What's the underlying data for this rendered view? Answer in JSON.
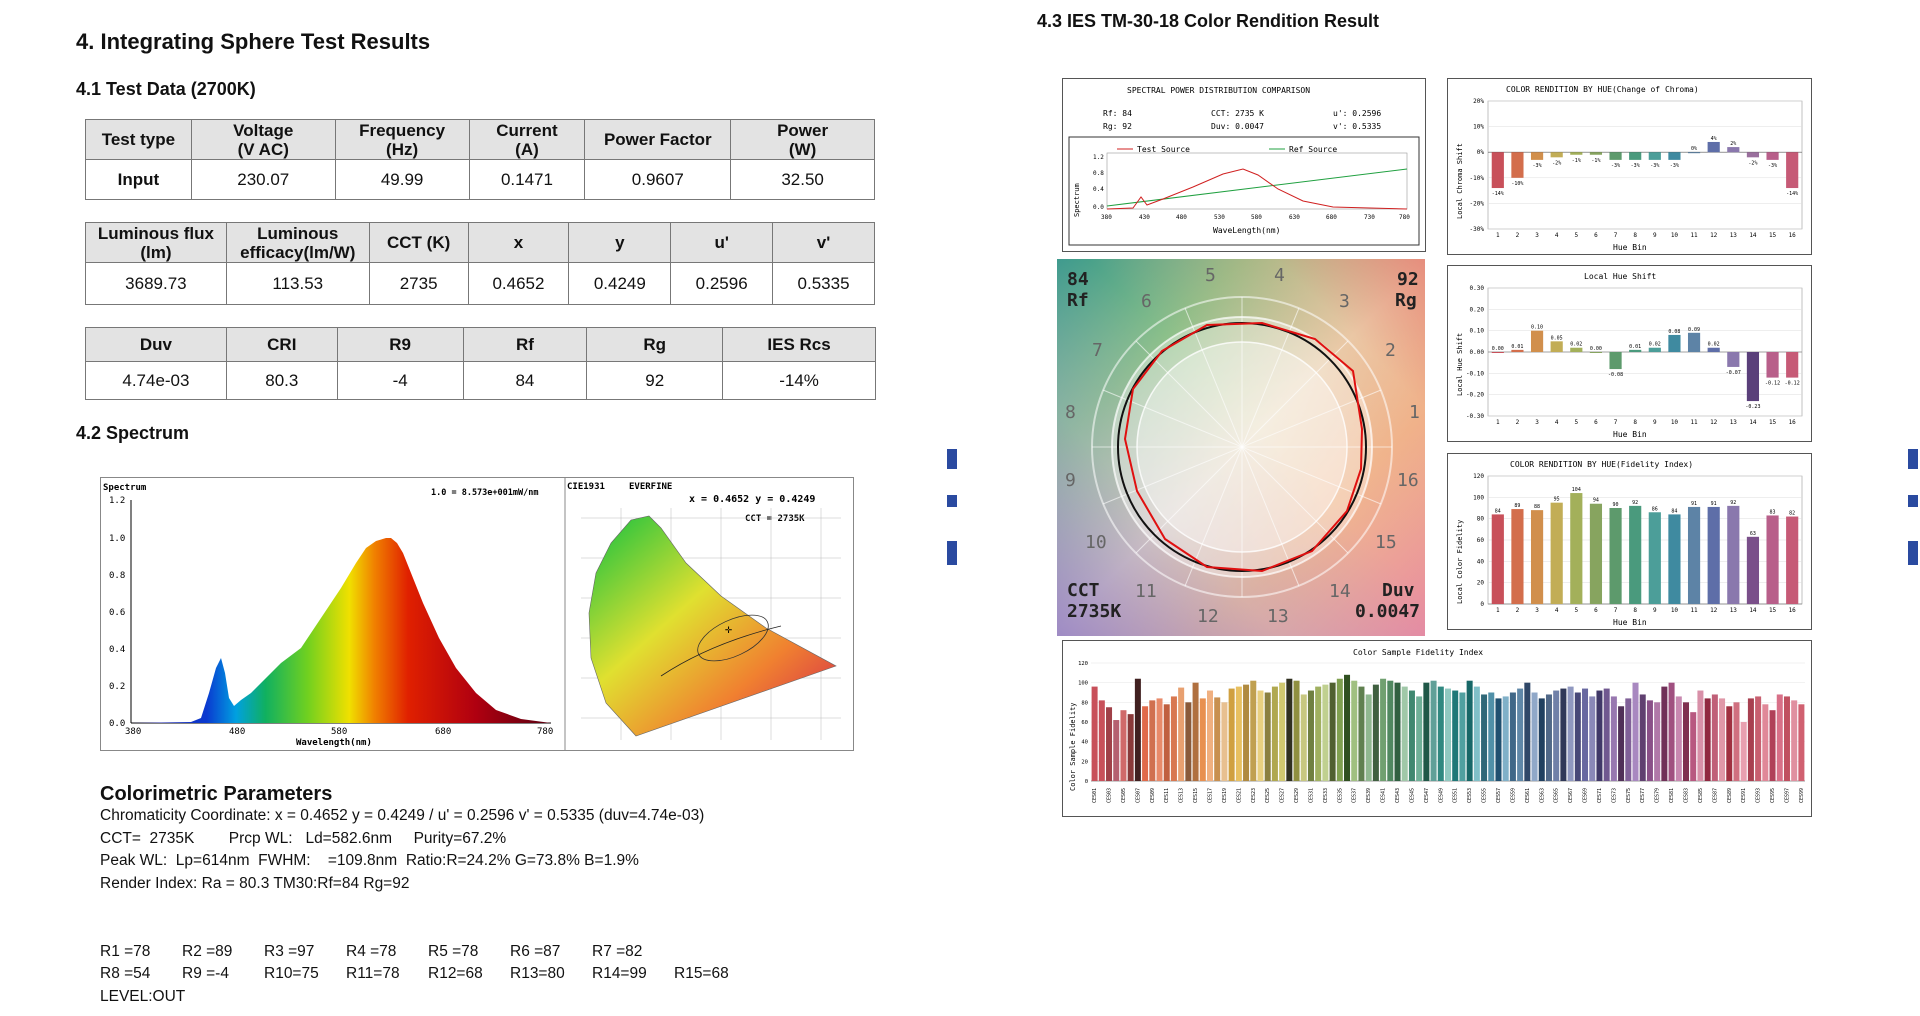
{
  "section_title": "4.  Integrating Sphere Test Results",
  "test_data_title": "4.1 Test Data (2700K)",
  "table1": {
    "headers": [
      [
        "Test type",
        ""
      ],
      [
        "Voltage",
        "(V AC)"
      ],
      [
        "Frequency",
        "(Hz)"
      ],
      [
        "Current",
        "(A)"
      ],
      [
        "Power Factor",
        ""
      ],
      [
        "Power",
        "(W)"
      ]
    ],
    "row": [
      "Input",
      "230.07",
      "49.99",
      "0.1471",
      "0.9607",
      "32.50"
    ]
  },
  "table2": {
    "headers": [
      [
        "Luminous flux",
        "(lm)"
      ],
      [
        "Luminous",
        "efficacy(lm/W)"
      ],
      [
        "CCT (K)",
        ""
      ],
      [
        "x",
        ""
      ],
      [
        "y",
        ""
      ],
      [
        "u'",
        ""
      ],
      [
        "v'",
        ""
      ]
    ],
    "row": [
      "3689.73",
      "113.53",
      "2735",
      "0.4652",
      "0.4249",
      "0.2596",
      "0.5335"
    ]
  },
  "table3": {
    "headers": [
      "Duv",
      "CRI",
      "R9",
      "Rf",
      "Rg",
      "IES Rcs"
    ],
    "row": [
      "4.74e-03",
      "80.3",
      "-4",
      "84",
      "92",
      "-14%"
    ]
  },
  "spectrum_title": "4.2 Spectrum",
  "spectrum_chart": {
    "ylabel": "Spectrum",
    "xlabel": "Wavelength(nm)",
    "scale_note": "1.0 = 8.573e+001mW/nm",
    "yticks": [
      "1.2",
      "1.0",
      "0.8",
      "0.6",
      "0.4",
      "0.2",
      "0.0"
    ],
    "xticks": [
      "380",
      "480",
      "580",
      "680",
      "780"
    ]
  },
  "cie_chart": {
    "title1": "CIE1931",
    "title2": "EVERFINE",
    "coord": "x = 0.4652  y = 0.4249",
    "cct": "CCT = 2735K"
  },
  "colorimetric": {
    "title": "Colorimetric Parameters",
    "lines": [
      "Chromaticity Coordinate: x = 0.4652 y = 0.4249 / u' = 0.2596 v' = 0.5335 (duv=4.74e-03)",
      "CCT=  2735K        Prcp WL:   Ld=582.6nm     Purity=67.2%",
      "Peak WL:  Lp=614nm  FWHM:    =109.8nm  Ratio:R=24.2% G=73.8% B=1.9%",
      "Render Index: Ra = 80.3 TM30:Rf=84 Rg=92"
    ],
    "r_row1": [
      "R1 =78",
      "R2 =89",
      "R3 =97",
      "R4 =78",
      "R5 =78",
      "R6 =87",
      "R7 =82"
    ],
    "r_row2": [
      "R8 =54",
      "R9 =-4",
      "R10=75",
      "R11=78",
      "R12=68",
      "R13=80",
      "R14=99",
      "R15=68"
    ],
    "level": "LEVEL:OUT"
  },
  "tm30_title": "4.3 IES TM-30-18 Color Rendition Result",
  "spd_panel": {
    "title": "SPECTRAL POWER DISTRIBUTION COMPARISON",
    "rf": "Rf:  84",
    "rg": "Rg:  92",
    "cct": "CCT:  2735 K",
    "duv": "Duv:  0.0047",
    "u": "u':  0.2596",
    "v": "v':  0.5335",
    "legend_test": "Test Source",
    "legend_ref": "Ref Source",
    "ylabel": "Spectrum",
    "xlabel": "WaveLength(nm)",
    "xticks": [
      "380",
      "430",
      "480",
      "530",
      "580",
      "630",
      "680",
      "730",
      "780"
    ],
    "yticks": [
      "1.2",
      "0.8",
      "0.4",
      "0.0"
    ]
  },
  "vector_graphic": {
    "rf_value": "84",
    "rf_label": "Rf",
    "rg_value": "92",
    "rg_label": "Rg",
    "cct_label": "CCT",
    "cct_value": "2735K",
    "duv_label": "Duv",
    "duv_value": "0.0047",
    "hue_numbers": [
      "1",
      "2",
      "3",
      "4",
      "5",
      "6",
      "7",
      "8",
      "9",
      "10",
      "11",
      "12",
      "13",
      "14",
      "15",
      "16"
    ]
  },
  "chroma_chart": {
    "title": "COLOR RENDITION BY HUE(Change of Chroma)",
    "ylabel": "Local Chroma Shift",
    "xlabel": "Hue Bin",
    "yticks": [
      "20%",
      "10%",
      "0%",
      "-10%",
      "-20%",
      "-30%"
    ]
  },
  "hue_chart": {
    "title": "Local Hue Shift",
    "ylabel": "Local Hue Shift",
    "xlabel": "Hue Bin",
    "yticks": [
      "0.30",
      "0.20",
      "0.10",
      "0.00",
      "-0.10",
      "-0.20",
      "-0.30"
    ]
  },
  "fidelity_chart": {
    "title": "COLOR RENDITION BY HUE(Fidelity Index)",
    "ylabel": "Local Color Fidelity",
    "xlabel": "Hue Bin",
    "yticks": [
      "120",
      "100",
      "80",
      "60",
      "40",
      "20",
      "0"
    ]
  },
  "sample_chart": {
    "title": "Color Sample Fidelity Index",
    "ylabel": "Color Sample Fidelity",
    "yticks": [
      "120",
      "100",
      "80",
      "60",
      "40",
      "20",
      "0"
    ]
  },
  "chart_data": [
    {
      "type": "bar",
      "title": "COLOR RENDITION BY HUE(Change of Chroma)",
      "xlabel": "Hue Bin",
      "ylabel": "Local Chroma Shift",
      "categories": [
        "1",
        "2",
        "3",
        "4",
        "5",
        "6",
        "7",
        "8",
        "9",
        "10",
        "11",
        "12",
        "13",
        "14",
        "15",
        "16"
      ],
      "values": [
        -14,
        -10,
        -3,
        -2,
        -1,
        -1,
        -3,
        -3,
        -3,
        -3,
        0,
        4,
        2,
        -2,
        -3,
        -14
      ],
      "labels": [
        "-14%",
        "-10%",
        "-3%",
        "-2%",
        "-1%",
        "-1%",
        "-3%",
        "-3%",
        "-3%",
        "-3%",
        "0%",
        "4%",
        "2%",
        "-2%",
        "-3%",
        "-14%"
      ],
      "colors": [
        "#c8505a",
        "#d36e4c",
        "#d18f4c",
        "#c2ad56",
        "#a3b05a",
        "#87a45f",
        "#5d9a6c",
        "#4a9a7d",
        "#4c9e99",
        "#3f8aa0",
        "#5d83a6",
        "#5e6ea8",
        "#8a78ad",
        "#9a6f9d",
        "#b85f8a",
        "#c65a76"
      ],
      "ylim": [
        -30,
        20
      ]
    },
    {
      "type": "bar",
      "title": "Local Hue Shift",
      "xlabel": "Hue Bin",
      "ylabel": "Local Hue Shift",
      "categories": [
        "1",
        "2",
        "3",
        "4",
        "5",
        "6",
        "7",
        "8",
        "9",
        "10",
        "11",
        "12",
        "13",
        "14",
        "15",
        "16"
      ],
      "values": [
        0.0,
        0.01,
        0.1,
        0.05,
        0.02,
        0.0,
        -0.08,
        0.01,
        0.02,
        0.08,
        0.09,
        0.02,
        -0.07,
        -0.23,
        -0.12,
        -0.12
      ],
      "labels": [
        "0.00",
        "0.01",
        "0.10",
        "0.05",
        "0.02",
        "0.00",
        "-0.08",
        "0.01",
        "0.02",
        "0.08",
        "0.09",
        "0.02",
        "-0.07",
        "-0.23",
        "-0.12",
        "-0.12"
      ],
      "colors": [
        "#c8505a",
        "#d36e4c",
        "#d18f4c",
        "#c2ad56",
        "#a3b05a",
        "#87a45f",
        "#5d9a6c",
        "#4a9a7d",
        "#4c9e99",
        "#3f8aa0",
        "#5d83a6",
        "#5e6ea8",
        "#8a78ad",
        "#5a3f7a",
        "#b85f8a",
        "#c65a76"
      ],
      "ylim": [
        -0.3,
        0.3
      ]
    },
    {
      "type": "bar",
      "title": "COLOR RENDITION BY HUE(Fidelity Index)",
      "xlabel": "Hue Bin",
      "ylabel": "Local Color Fidelity",
      "categories": [
        "1",
        "2",
        "3",
        "4",
        "5",
        "6",
        "7",
        "8",
        "9",
        "10",
        "11",
        "12",
        "13",
        "14",
        "15",
        "16"
      ],
      "values": [
        84,
        89,
        88,
        95,
        104,
        94,
        90,
        92,
        86,
        84,
        91,
        91,
        92,
        63,
        83,
        82
      ],
      "labels": [
        "84",
        "89",
        "88",
        "95",
        "104",
        "94",
        "90",
        "92",
        "86",
        "84",
        "91",
        "91",
        "92",
        "63",
        "83",
        "82"
      ],
      "colors": [
        "#c8505a",
        "#d36e4c",
        "#d18f4c",
        "#c2ad56",
        "#a3b05a",
        "#87a45f",
        "#5d9a6c",
        "#4a9a7d",
        "#4c9e99",
        "#3f8aa0",
        "#5d83a6",
        "#5e6ea8",
        "#8a78ad",
        "#7a4f8a",
        "#b85f8a",
        "#c65a76"
      ],
      "ylim": [
        0,
        120
      ]
    },
    {
      "type": "bar",
      "title": "Color Sample Fidelity Index",
      "ylabel": "Color Sample Fidelity",
      "ylim": [
        0,
        120
      ],
      "categories": [
        "CES01",
        "CES02",
        "CES03",
        "CES04",
        "CES05",
        "CES06",
        "CES07",
        "CES08",
        "CES09",
        "CES10",
        "CES11",
        "CES12",
        "CES13",
        "CES14",
        "CES15",
        "CES16",
        "CES17",
        "CES18",
        "CES19",
        "CES20",
        "CES21",
        "CES22",
        "CES23",
        "CES24",
        "CES25",
        "CES26",
        "CES27",
        "CES28",
        "CES29",
        "CES30",
        "CES31",
        "CES32",
        "CES33",
        "CES34",
        "CES35",
        "CES36",
        "CES37",
        "CES38",
        "CES39",
        "CES40",
        "CES41",
        "CES42",
        "CES43",
        "CES44",
        "CES45",
        "CES46",
        "CES47",
        "CES48",
        "CES49",
        "CES50",
        "CES51",
        "CES52",
        "CES53",
        "CES54",
        "CES55",
        "CES56",
        "CES57",
        "CES58",
        "CES59",
        "CES60",
        "CES61",
        "CES62",
        "CES63",
        "CES64",
        "CES65",
        "CES66",
        "CES67",
        "CES68",
        "CES69",
        "CES70",
        "CES71",
        "CES72",
        "CES73",
        "CES74",
        "CES75",
        "CES76",
        "CES77",
        "CES78",
        "CES79",
        "CES80",
        "CES81",
        "CES82",
        "CES83",
        "CES84",
        "CES85",
        "CES86",
        "CES87",
        "CES88",
        "CES89",
        "CES90",
        "CES91",
        "CES92",
        "CES93",
        "CES94",
        "CES95",
        "CES96",
        "CES97",
        "CES98",
        "CES99"
      ],
      "values": [
        96,
        82,
        75,
        62,
        72,
        68,
        104,
        76,
        82,
        84,
        78,
        86,
        95,
        80,
        100,
        84,
        92,
        85,
        80,
        94,
        96,
        98,
        102,
        92,
        90,
        96,
        100,
        104,
        102,
        88,
        92,
        96,
        98,
        100,
        104,
        108,
        102,
        96,
        88,
        98,
        104,
        102,
        100,
        96,
        92,
        86,
        100,
        102,
        96,
        94,
        92,
        90,
        102,
        96,
        88,
        90,
        84,
        86,
        90,
        94,
        100,
        90,
        84,
        88,
        92,
        94,
        96,
        90,
        94,
        86,
        92,
        94,
        86,
        76,
        84,
        100,
        88,
        82,
        80,
        96,
        100,
        86,
        80,
        70,
        92,
        84,
        88,
        84,
        76,
        80,
        60,
        84,
        86,
        78,
        72,
        88,
        86,
        82,
        78
      ],
      "colors": [
        "#c8505a",
        "#c8505a",
        "#a04048",
        "#b56070",
        "#d06a6a",
        "#8a3a3a",
        "#402020",
        "#e06a4a",
        "#d07050",
        "#e88a6a",
        "#c06040",
        "#d87850",
        "#e8a070",
        "#8a5a3a",
        "#b07040",
        "#e89050",
        "#f0b080",
        "#c89050",
        "#e8c090",
        "#d0a040",
        "#e8c060",
        "#b08a40",
        "#c0a050",
        "#e8d080",
        "#8a8040",
        "#b0a850",
        "#d0c870",
        "#303020",
        "#909040",
        "#c8c880",
        "#708040",
        "#a0b060",
        "#c0d090",
        "#506030",
        "#80a050",
        "#305020",
        "#a0c080",
        "#608050",
        "#90b890",
        "#406040",
        "#70a070",
        "#508860",
        "#306040",
        "#a0c8a8",
        "#408870",
        "#70b098",
        "#205848",
        "#60a098",
        "#308880",
        "#90c8c0",
        "#207878",
        "#50a0a0",
        "#186868",
        "#80c0c8",
        "#306878",
        "#5090a8",
        "#205070",
        "#80b0c8",
        "#406888",
        "#6088a8",
        "#304868",
        "#90a8c8",
        "#204060",
        "#506888",
        "#7080a8",
        "#303858",
        "#9098c0",
        "#484878",
        "#6868a0",
        "#8a88b8",
        "#403868",
        "#705890",
        "#9878b0",
        "#503058",
        "#806098",
        "#a888c0",
        "#604070",
        "#8a5088",
        "#b078a8",
        "#703058",
        "#a05080",
        "#c888b0",
        "#803050",
        "#b85880",
        "#d890a8",
        "#902840",
        "#c06078",
        "#e098a8",
        "#a03040",
        "#d07080",
        "#e8a0b0",
        "#a84050",
        "#c86070",
        "#e08898",
        "#b04058",
        "#d87088",
        "#c05060",
        "#e090a0",
        "#d06070"
      ]
    }
  ]
}
